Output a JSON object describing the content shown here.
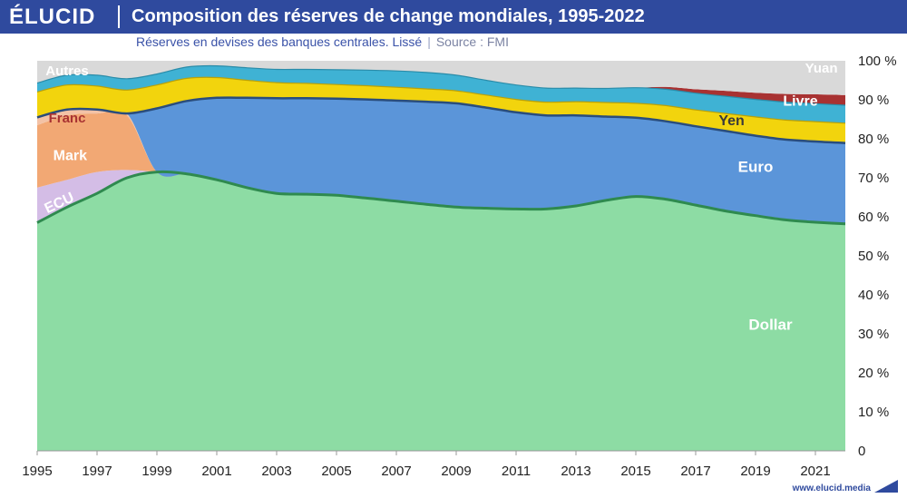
{
  "header": {
    "logo": "ÉLUCID",
    "title": "Composition des réserves de change mondiales, 1995-2022",
    "subtitle": "Réserves en devises des banques centrales. Lissé",
    "source": "Source : FMI"
  },
  "footer": {
    "url": "www.elucid.media"
  },
  "colors": {
    "header_bg": "#2f4a9e",
    "Dollar": "#8ddca4",
    "ECU": "#d4bde6",
    "Mark": "#f2a874",
    "Franc": "#f3c2a6",
    "Euro": "#5b95d9",
    "Yen": "#f2d40d",
    "Livre": "#3fb2d4",
    "Yuan": "#a83232",
    "Autres": "#d9d9d9"
  },
  "chart_data": {
    "type": "area",
    "stacked": true,
    "title": "Composition des réserves de change mondiales, 1995-2022",
    "subtitle": "Réserves en devises des banques centrales. Lissé",
    "ylim": [
      0,
      100
    ],
    "y_ticks": [
      "0",
      "10 %",
      "20 %",
      "30 %",
      "40 %",
      "50 %",
      "60 %",
      "70 %",
      "80 %",
      "90 %",
      "100 %"
    ],
    "x_ticks": [
      "1995",
      "1997",
      "1999",
      "2001",
      "2003",
      "2005",
      "2007",
      "2009",
      "2011",
      "2013",
      "2015",
      "2017",
      "2019",
      "2021"
    ],
    "x": [
      1995,
      1996,
      1997,
      1998,
      1999,
      2000,
      2001,
      2002,
      2003,
      2004,
      2005,
      2006,
      2007,
      2008,
      2009,
      2010,
      2011,
      2012,
      2013,
      2014,
      2015,
      2016,
      2017,
      2018,
      2019,
      2020,
      2021,
      2022
    ],
    "series": [
      {
        "name": "Dollar",
        "values": [
          58.5,
          62.5,
          66.0,
          70.0,
          71.5,
          71.0,
          69.5,
          67.5,
          66.0,
          65.8,
          65.5,
          64.8,
          64.0,
          63.2,
          62.5,
          62.2,
          62.0,
          62.0,
          62.8,
          64.2,
          65.2,
          64.5,
          63.0,
          61.5,
          60.3,
          59.2,
          58.6,
          58.2
        ]
      },
      {
        "name": "ECU",
        "values": [
          9.0,
          7.0,
          5.5,
          2.0,
          0,
          0,
          0,
          0,
          0,
          0,
          0,
          0,
          0,
          0,
          0,
          0,
          0,
          0,
          0,
          0,
          0,
          0,
          0,
          0,
          0,
          0,
          0,
          0
        ]
      },
      {
        "name": "Mark",
        "values": [
          16.0,
          16.5,
          15.0,
          14.0,
          0,
          0,
          0,
          0,
          0,
          0,
          0,
          0,
          0,
          0,
          0,
          0,
          0,
          0,
          0,
          0,
          0,
          0,
          0,
          0,
          0,
          0,
          0,
          0
        ]
      },
      {
        "name": "Franc",
        "values": [
          2.0,
          1.5,
          1.0,
          0.5,
          0,
          0,
          0,
          0,
          0,
          0,
          0,
          0,
          0,
          0,
          0,
          0,
          0,
          0,
          0,
          0,
          0,
          0,
          0,
          0,
          0,
          0,
          0,
          0
        ]
      },
      {
        "name": "Euro",
        "values": [
          0,
          0,
          0,
          0,
          16.3,
          18.7,
          21.0,
          23.0,
          24.4,
          24.6,
          24.8,
          25.3,
          25.8,
          26.3,
          26.6,
          25.8,
          24.8,
          24.0,
          23.2,
          21.5,
          20.2,
          20.0,
          20.2,
          20.5,
          20.5,
          20.6,
          20.7,
          20.7
        ]
      },
      {
        "name": "Yen",
        "values": [
          6.5,
          6.3,
          6.0,
          6.0,
          6.0,
          5.8,
          5.2,
          4.5,
          4.0,
          3.8,
          3.6,
          3.5,
          3.4,
          3.3,
          3.2,
          3.2,
          3.3,
          3.4,
          3.5,
          3.6,
          3.7,
          4.0,
          4.2,
          4.5,
          4.8,
          5.0,
          5.1,
          5.1
        ]
      },
      {
        "name": "Livre",
        "values": [
          2.3,
          2.5,
          2.8,
          2.9,
          2.8,
          2.9,
          3.0,
          3.2,
          3.4,
          3.6,
          3.8,
          4.0,
          4.2,
          4.2,
          4.0,
          3.8,
          3.7,
          3.6,
          3.5,
          3.6,
          4.0,
          4.2,
          4.3,
          4.4,
          4.5,
          4.6,
          4.6,
          4.6
        ]
      },
      {
        "name": "Yuan",
        "values": [
          0,
          0,
          0,
          0,
          0,
          0,
          0,
          0,
          0,
          0,
          0,
          0,
          0,
          0,
          0,
          0,
          0,
          0,
          0,
          0,
          0,
          0.6,
          1.0,
          1.4,
          1.7,
          2.1,
          2.4,
          2.6
        ]
      },
      {
        "name": "Autres",
        "values": [
          5.7,
          3.7,
          3.7,
          4.6,
          3.4,
          1.6,
          1.3,
          1.8,
          2.2,
          2.2,
          2.3,
          2.4,
          2.6,
          3.0,
          3.7,
          5.0,
          6.2,
          7.0,
          7.0,
          7.1,
          6.9,
          6.7,
          7.3,
          7.7,
          8.2,
          8.5,
          8.6,
          8.8
        ]
      }
    ]
  }
}
